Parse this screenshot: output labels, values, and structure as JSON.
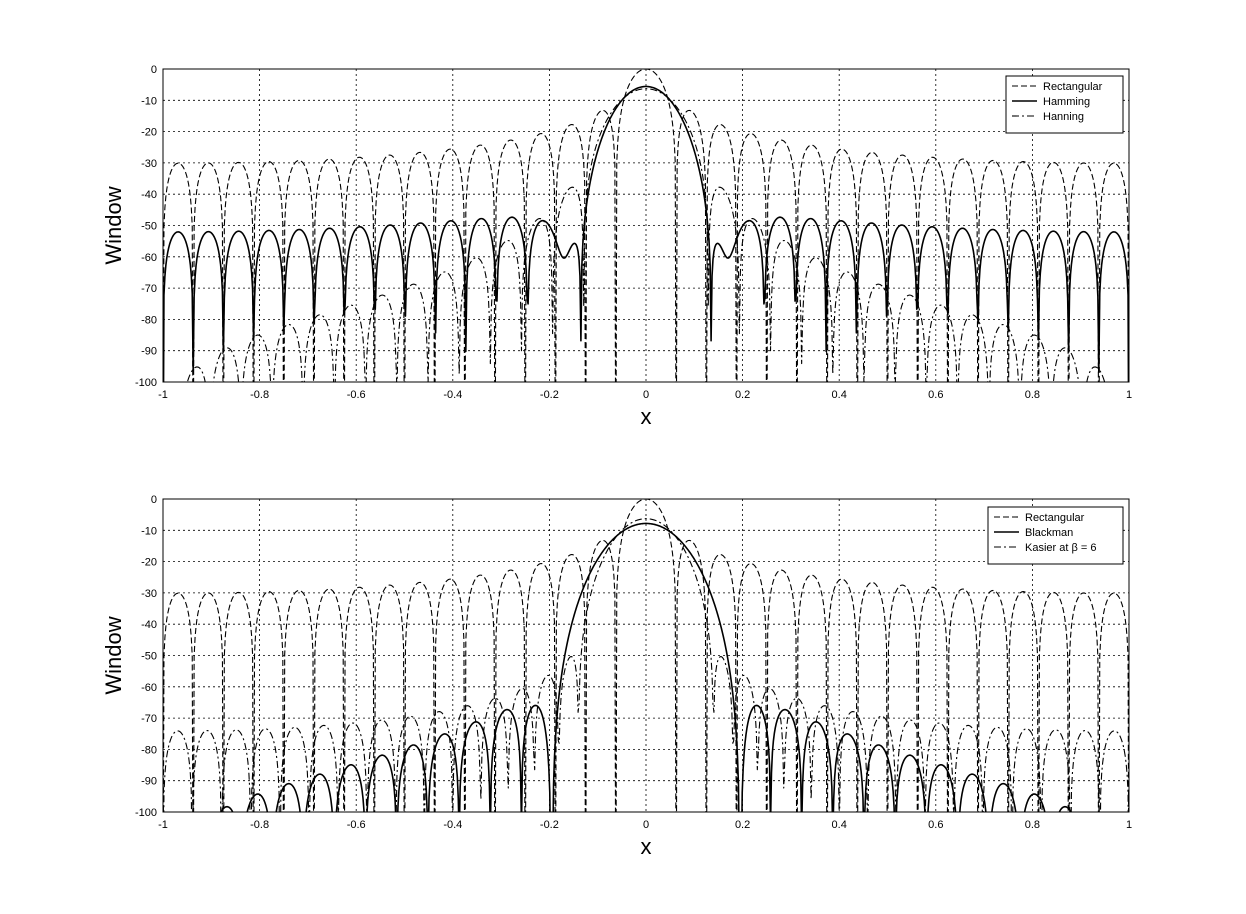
{
  "chart_data": [
    {
      "type": "line",
      "xlabel": "x",
      "ylabel": "Window",
      "xlim": [
        -1,
        1
      ],
      "ylim": [
        -100,
        0
      ],
      "x_ticks": [
        "-1",
        "-0.8",
        "-0.6",
        "-0.4",
        "-0.2",
        "0",
        "0.2",
        "0.4",
        "0.6",
        "0.8",
        "1"
      ],
      "y_ticks": [
        "0",
        "-10",
        "-20",
        "-30",
        "-40",
        "-50",
        "-60",
        "-70",
        "-80",
        "-90",
        "-100"
      ],
      "grid": true,
      "legend_position": "top-right",
      "series": [
        {
          "name": "Rectangular",
          "window": "rectangular",
          "line_style": "dashed",
          "main_lobe_peak_db": 0,
          "first_sidelobe_db": -13,
          "far_sidelobe_db": -30
        },
        {
          "name": "Hamming",
          "window": "hamming",
          "line_style": "solid",
          "main_lobe_peak_db": -5.4,
          "first_sidelobe_db": -48,
          "far_sidelobe_db": -52
        },
        {
          "name": "Hanning",
          "window": "hanning",
          "line_style": "dashdot",
          "main_lobe_peak_db": -6,
          "first_sidelobe_db": -37,
          "far_sidelobe_db": -89
        }
      ]
    },
    {
      "type": "line",
      "xlabel": "x",
      "ylabel": "Window",
      "xlim": [
        -1,
        1
      ],
      "ylim": [
        -100,
        0
      ],
      "x_ticks": [
        "-1",
        "-0.8",
        "-0.6",
        "-0.4",
        "-0.2",
        "0",
        "0.2",
        "0.4",
        "0.6",
        "0.8",
        "1"
      ],
      "y_ticks": [
        "0",
        "-10",
        "-20",
        "-30",
        "-40",
        "-50",
        "-60",
        "-70",
        "-80",
        "-90",
        "-100"
      ],
      "grid": true,
      "legend_position": "top-right",
      "series": [
        {
          "name": "Rectangular",
          "window": "rectangular",
          "line_style": "dashed",
          "main_lobe_peak_db": 0,
          "first_sidelobe_db": -13,
          "far_sidelobe_db": -30
        },
        {
          "name": "Blackman",
          "window": "blackman",
          "line_style": "solid",
          "main_lobe_peak_db": -7.6,
          "first_sidelobe_db": -67,
          "far_sidelobe_db": -96
        },
        {
          "name": "Kasier at β = 6",
          "window": "kaiser",
          "line_style": "dashdot",
          "main_lobe_peak_db": -8.5,
          "first_sidelobe_db": -66,
          "far_sidelobe_db": -74
        }
      ]
    }
  ]
}
